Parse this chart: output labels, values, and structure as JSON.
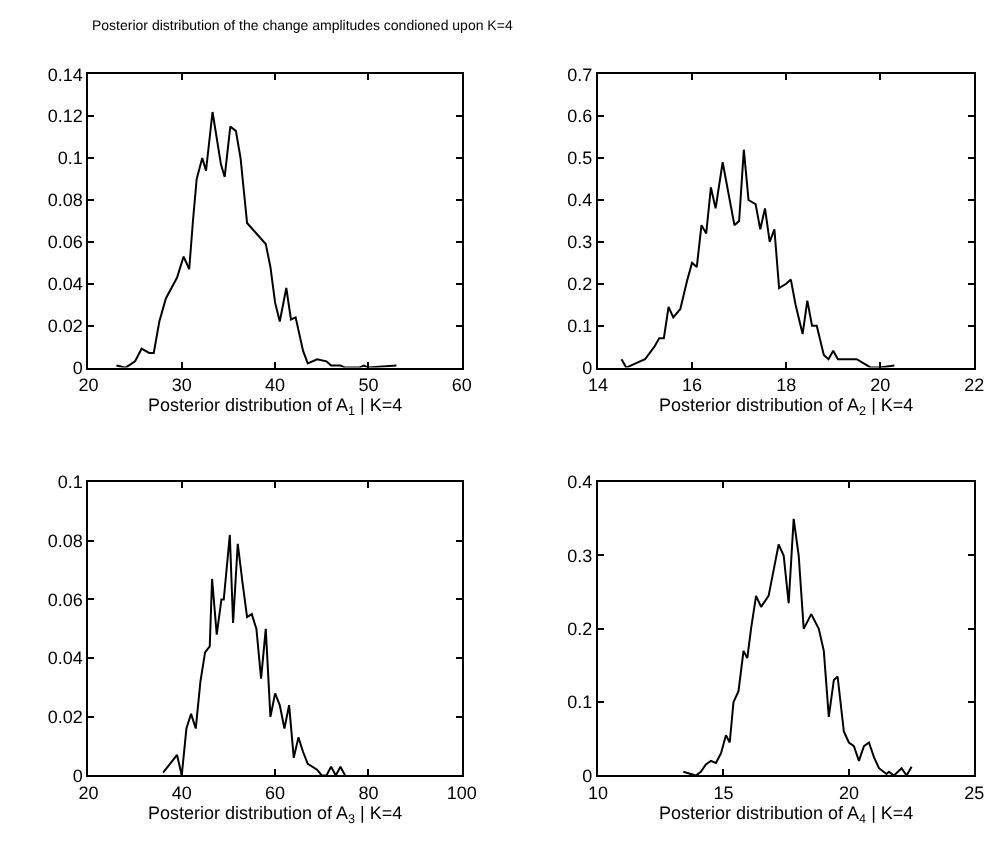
{
  "chart_data": [
    {
      "type": "line",
      "title": "Posterior distribution of the change amplitudes condioned upon K=4",
      "xlabel": "Posterior distribution of A$_{1}$ | K=4",
      "xlim": [
        20,
        60
      ],
      "xticks": [
        20,
        30,
        40,
        50,
        60
      ],
      "ylim": [
        0,
        0.14
      ],
      "yticks": [
        0,
        0.02,
        0.04,
        0.06,
        0.08,
        0.1,
        0.12,
        0.14
      ],
      "x": [
        23,
        24,
        25,
        25.7,
        26.5,
        27,
        27.6,
        28.3,
        29.5,
        30.2,
        30.8,
        31.2,
        31.6,
        32.2,
        32.6,
        33.3,
        34.2,
        34.6,
        35.2,
        35.8,
        36.3,
        37,
        38,
        39,
        39.5,
        40,
        40.5,
        41.2,
        41.7,
        42.2,
        43,
        43.5,
        44.5,
        45.5,
        46,
        47,
        47.5,
        49,
        49.5,
        50,
        53
      ],
      "series": [
        {
          "color": "#000000",
          "values": [
            0.001,
            0,
            0.003,
            0.009,
            0.007,
            0.007,
            0.022,
            0.033,
            0.043,
            0.053,
            0.047,
            0.07,
            0.09,
            0.1,
            0.094,
            0.122,
            0.097,
            0.091,
            0.115,
            0.113,
            0.1,
            0.069,
            0.064,
            0.059,
            0.048,
            0.031,
            0.022,
            0.038,
            0.023,
            0.024,
            0.008,
            0.002,
            0.004,
            0.003,
            0.001,
            0.001,
            0,
            0,
            0.001,
            0,
            0.001
          ]
        }
      ]
    },
    {
      "type": "line",
      "xlabel": "Posterior distribution of A$_{2}$ | K=4",
      "xlim": [
        14,
        22
      ],
      "xticks": [
        14,
        16,
        18,
        20,
        22
      ],
      "ylim": [
        0,
        0.7
      ],
      "yticks": [
        0,
        0.1,
        0.2,
        0.3,
        0.4,
        0.5,
        0.6,
        0.7
      ],
      "x": [
        14.5,
        14.6,
        14.8,
        15,
        15.2,
        15.3,
        15.4,
        15.5,
        15.6,
        15.75,
        15.9,
        16,
        16.1,
        16.2,
        16.3,
        16.4,
        16.5,
        16.65,
        16.8,
        16.9,
        17,
        17.1,
        17.2,
        17.35,
        17.45,
        17.55,
        17.65,
        17.75,
        17.85,
        18.0,
        18.1,
        18.2,
        18.35,
        18.45,
        18.55,
        18.65,
        18.8,
        18.9,
        19.0,
        19.1,
        19.5,
        19.8,
        20,
        20.3
      ],
      "series": [
        {
          "color": "#000000",
          "values": [
            0.02,
            0,
            0.01,
            0.02,
            0.05,
            0.07,
            0.07,
            0.145,
            0.12,
            0.14,
            0.21,
            0.25,
            0.24,
            0.34,
            0.32,
            0.43,
            0.38,
            0.49,
            0.4,
            0.34,
            0.35,
            0.52,
            0.4,
            0.39,
            0.33,
            0.38,
            0.3,
            0.33,
            0.19,
            0.2,
            0.21,
            0.15,
            0.08,
            0.16,
            0.1,
            0.1,
            0.03,
            0.02,
            0.04,
            0.02,
            0.02,
            0,
            0,
            0.005
          ]
        }
      ]
    },
    {
      "type": "line",
      "xlabel": "Posterior distribution of A$_{3}$ | K=4",
      "xlim": [
        20,
        100
      ],
      "xticks": [
        20,
        40,
        60,
        80,
        100
      ],
      "ylim": [
        0,
        0.1
      ],
      "yticks": [
        0,
        0.02,
        0.04,
        0.06,
        0.08,
        0.1
      ],
      "x": [
        36,
        39,
        40,
        41,
        42,
        43,
        44,
        45,
        46,
        46.5,
        47.5,
        48.5,
        49,
        50.3,
        51,
        52,
        53,
        54,
        55,
        56,
        57,
        58,
        59,
        60,
        61,
        62,
        63,
        64,
        65,
        66,
        67,
        69,
        70,
        71,
        72,
        73,
        74,
        75
      ],
      "series": [
        {
          "color": "#000000",
          "values": [
            0.001,
            0.007,
            0,
            0.016,
            0.021,
            0.016,
            0.032,
            0.042,
            0.044,
            0.067,
            0.048,
            0.06,
            0.06,
            0.082,
            0.052,
            0.079,
            0.066,
            0.054,
            0.055,
            0.05,
            0.033,
            0.05,
            0.02,
            0.028,
            0.024,
            0.016,
            0.024,
            0.006,
            0.013,
            0.008,
            0.004,
            0.002,
            0,
            0,
            0.003,
            0,
            0.003,
            0
          ]
        }
      ]
    },
    {
      "type": "line",
      "xlabel": "Posterior distribution of A$_{4}$ | K=4",
      "xlim": [
        10,
        25
      ],
      "xticks": [
        10,
        15,
        20,
        25
      ],
      "ylim": [
        0,
        0.4
      ],
      "yticks": [
        0,
        0.1,
        0.2,
        0.3,
        0.4
      ],
      "x": [
        13.4,
        13.7,
        13.9,
        14.1,
        14.3,
        14.5,
        14.7,
        14.9,
        15.1,
        15.25,
        15.4,
        15.6,
        15.8,
        15.95,
        16.1,
        16.3,
        16.5,
        16.8,
        17,
        17.2,
        17.4,
        17.6,
        17.8,
        18,
        18.2,
        18.5,
        18.8,
        19.0,
        19.2,
        19.4,
        19.55,
        19.8,
        20,
        20.2,
        20.4,
        20.6,
        20.8,
        21,
        21.2,
        21.5,
        21.6,
        21.8,
        22.1,
        22.3,
        22.5
      ],
      "series": [
        {
          "color": "#000000",
          "values": [
            0.005,
            0.002,
            0,
            0.005,
            0.015,
            0.02,
            0.017,
            0.03,
            0.055,
            0.045,
            0.1,
            0.115,
            0.17,
            0.16,
            0.2,
            0.245,
            0.23,
            0.245,
            0.28,
            0.315,
            0.3,
            0.235,
            0.35,
            0.3,
            0.2,
            0.22,
            0.2,
            0.17,
            0.08,
            0.13,
            0.135,
            0.06,
            0.045,
            0.04,
            0.02,
            0.04,
            0.045,
            0.025,
            0.01,
            0.002,
            0.005,
            0,
            0.01,
            0,
            0.012
          ]
        }
      ]
    }
  ]
}
